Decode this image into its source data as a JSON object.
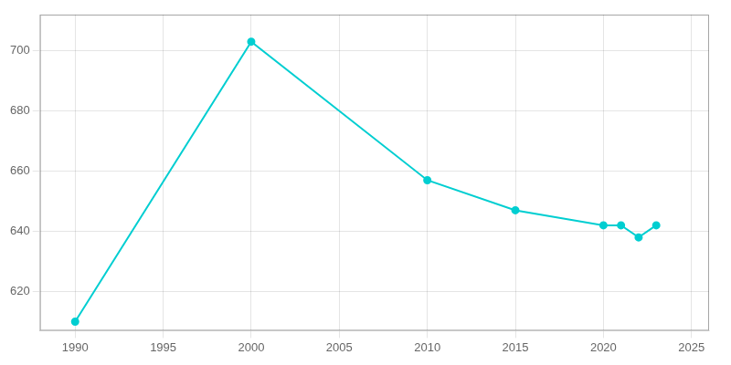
{
  "chart_data": {
    "type": "line",
    "x": [
      1990,
      2000,
      2010,
      2015,
      2020,
      2021,
      2022,
      2023
    ],
    "values": [
      610,
      703,
      657,
      647,
      642,
      642,
      638,
      642
    ],
    "color": "#00CED1",
    "marker": "circle",
    "xlim": [
      1988,
      2026
    ],
    "ylim": [
      607,
      712
    ],
    "xticks": [
      1990,
      1995,
      2000,
      2005,
      2010,
      2015,
      2020,
      2025
    ],
    "yticks": [
      620,
      640,
      660,
      680,
      700
    ],
    "grid": true
  }
}
